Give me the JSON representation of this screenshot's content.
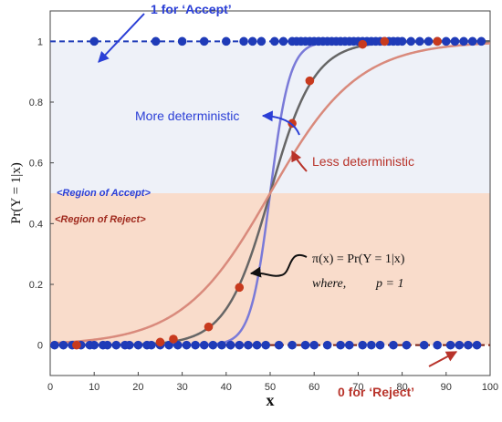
{
  "chart_data": {
    "type": "scatter",
    "title": "",
    "xlabel": "x",
    "ylabel": "Pr(Y = 1|x)",
    "xlim": [
      0,
      100
    ],
    "ylim": [
      -0.1,
      1.1
    ],
    "x_ticks": [
      0,
      10,
      20,
      30,
      40,
      50,
      60,
      70,
      80,
      90,
      100
    ],
    "y_ticks": [
      0,
      0.2,
      0.4,
      0.6,
      0.8,
      1
    ],
    "threshold": 0.5,
    "regions": {
      "accept": {
        "label": "<Region of Accept>",
        "y_range": [
          0.5,
          1.0
        ],
        "color": "#eef1f8"
      },
      "reject": {
        "label": "<Region of Reject>",
        "y_range": [
          0.0,
          0.5
        ],
        "color": "#f9dccb"
      }
    },
    "annotations": {
      "accept_line": "1 for ‘Accept’",
      "reject_line": "0 for ‘Reject’",
      "more_det": "More deterministic",
      "less_det": "Less deterministic",
      "formula_main": "π(x) = Pr(Y = 1|x)",
      "formula_where": "where,",
      "formula_p": "p = 1"
    },
    "series": [
      {
        "name": "",
        "kind": "curve",
        "center": 50,
        "k": 0.45,
        "color": "#7a7ad8"
      },
      {
        "name": "",
        "kind": "curve",
        "center": 50,
        "k": 0.2,
        "color": "#666666"
      },
      {
        "name": "",
        "kind": "curve",
        "center": 50,
        "k": 0.1,
        "color": "#d98a7c"
      },
      {
        "name": "",
        "kind": "points",
        "color": "#1f3bb8",
        "y": 1,
        "x": [
          10,
          24,
          30,
          35,
          40,
          44,
          46,
          48,
          51,
          53,
          55,
          56,
          57,
          58,
          59,
          60,
          61,
          62,
          63,
          64,
          65,
          66,
          67,
          68,
          69,
          70,
          71,
          72,
          73,
          74,
          75,
          76,
          77,
          78,
          79,
          80,
          82,
          84,
          86,
          88,
          90,
          92,
          94,
          96,
          98
        ]
      },
      {
        "name": "",
        "kind": "points",
        "color": "#1f3bb8",
        "y": 0,
        "x": [
          1,
          3,
          5,
          7,
          9,
          10,
          12,
          13,
          15,
          17,
          18,
          20,
          22,
          23,
          25,
          27,
          29,
          31,
          33,
          35,
          37,
          39,
          41,
          43,
          45,
          47,
          49,
          52,
          55,
          58,
          60,
          63,
          66,
          68,
          71,
          73,
          75,
          78,
          81,
          85,
          88,
          91,
          93,
          95,
          97
        ]
      },
      {
        "name": "",
        "kind": "points",
        "color": "#c83a1e",
        "x": [
          6,
          25,
          28,
          36,
          43,
          55,
          59,
          71,
          76,
          88
        ],
        "y": [
          0,
          0.01,
          0.02,
          0.06,
          0.19,
          0.73,
          0.87,
          0.99,
          1.0,
          1.0
        ]
      }
    ]
  }
}
